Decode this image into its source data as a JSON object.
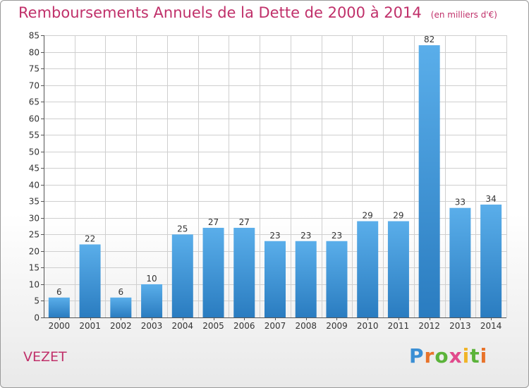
{
  "header": {
    "title": "Remboursements Annuels de la Dette de 2000 à 2014",
    "subtitle": "(en milliers d'€)"
  },
  "footer": {
    "commune": "VEZET",
    "logo_text": "Proxiti"
  },
  "colors": {
    "title": "#c0306a",
    "bar_light": "#5aaeea",
    "bar_dark": "#2a7cc0",
    "grid": "#cfcfcf"
  },
  "chart_data": {
    "type": "bar",
    "title": "Remboursements Annuels de la Dette de 2000 à 2014",
    "subtitle": "(en milliers d'€)",
    "categories": [
      "2000",
      "2001",
      "2002",
      "2003",
      "2004",
      "2005",
      "2006",
      "2007",
      "2008",
      "2009",
      "2010",
      "2011",
      "2012",
      "2013",
      "2014"
    ],
    "values": [
      6,
      22,
      6,
      10,
      25,
      27,
      27,
      23,
      23,
      23,
      29,
      29,
      82,
      33,
      34
    ],
    "ylim": [
      0,
      85
    ],
    "yticks": [
      0,
      5,
      10,
      15,
      20,
      25,
      30,
      35,
      40,
      45,
      50,
      55,
      60,
      65,
      70,
      75,
      80,
      85
    ],
    "grid": true
  }
}
